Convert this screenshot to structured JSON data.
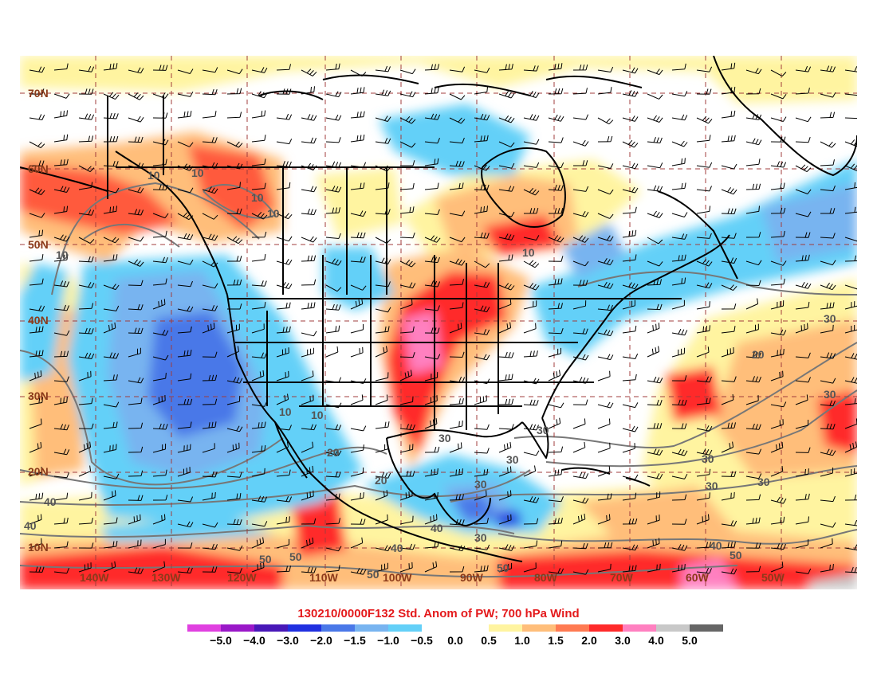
{
  "title": "130210/0000F132 Std. Anom of PW; 700 hPa Wind",
  "lat_labels": [
    "70N",
    "60N",
    "50N",
    "40N",
    "30N",
    "20N",
    "10N"
  ],
  "lon_labels": [
    "140W",
    "130W",
    "120W",
    "110W",
    "100W",
    "90W",
    "80W",
    "70W",
    "60W",
    "50W"
  ],
  "contour_labels": [
    "10",
    "20",
    "30",
    "40",
    "50"
  ],
  "colorbar": {
    "labels": [
      "−5.0",
      "−4.0",
      "−3.0",
      "−2.0",
      "−1.5",
      "−1.0",
      "−0.5",
      "0.0",
      "0.5",
      "1.0",
      "1.5",
      "2.0",
      "3.0",
      "4.0",
      "5.0"
    ],
    "colors": [
      "#e040e0",
      "#9a18c8",
      "#4818b8",
      "#2030e0",
      "#4a78e8",
      "#78b4f0",
      "#64d0f8",
      "#ffffff",
      "#ffffff",
      "#fff4a0",
      "#ffbe7a",
      "#ff7a52",
      "#ff2a2a",
      "#ff80c0",
      "#c8c8c8",
      "#666666"
    ]
  },
  "colors": {
    "title": "#e41a1c",
    "graticule": "#a03c3c",
    "coast": "#000000",
    "contour": "#777777"
  }
}
